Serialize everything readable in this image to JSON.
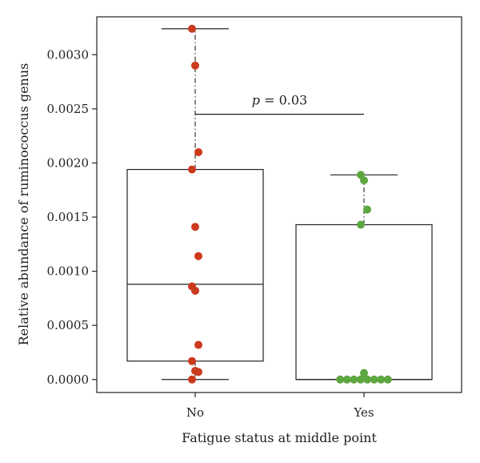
{
  "chart_data": {
    "type": "box",
    "xlabel": "Fatigue status at middle point",
    "ylabel": "Relative abundance of ruminococcus genus",
    "categories": [
      "No",
      "Yes"
    ],
    "ylim": [
      -0.00012,
      0.00335
    ],
    "yticks": [
      "0.0000",
      "0.0005",
      "0.0010",
      "0.0015",
      "0.0020",
      "0.0025",
      "0.0030"
    ],
    "ytick_values": [
      0,
      0.0005,
      0.001,
      0.0015,
      0.002,
      0.0025,
      0.003
    ],
    "grid": false,
    "boxes": [
      {
        "category": "No",
        "color": "#cc3a1e",
        "q1": 0.00017,
        "median": 0.00088,
        "q3": 0.00194,
        "whisker_low": 0.0,
        "whisker_high": 0.00324,
        "points": [
          0.00324,
          0.0029,
          0.0021,
          0.00194,
          0.00141,
          0.00114,
          0.00086,
          0.00082,
          0.00032,
          0.00017,
          8e-05,
          7e-05,
          0.0
        ]
      },
      {
        "category": "Yes",
        "color": "#5ea640",
        "q1": 0.0,
        "median": 0.0,
        "q3": 0.00143,
        "whisker_low": 0.0,
        "whisker_high": 0.00189,
        "points": [
          0.00189,
          0.00184,
          0.00157,
          0.00143,
          6e-05,
          0.0,
          0.0,
          0.0,
          0.0,
          0.0,
          0.0,
          0.0,
          0.0
        ]
      }
    ],
    "annotation": {
      "p_label": "p",
      "p_value": "= 0.03",
      "y": 0.00245
    }
  }
}
